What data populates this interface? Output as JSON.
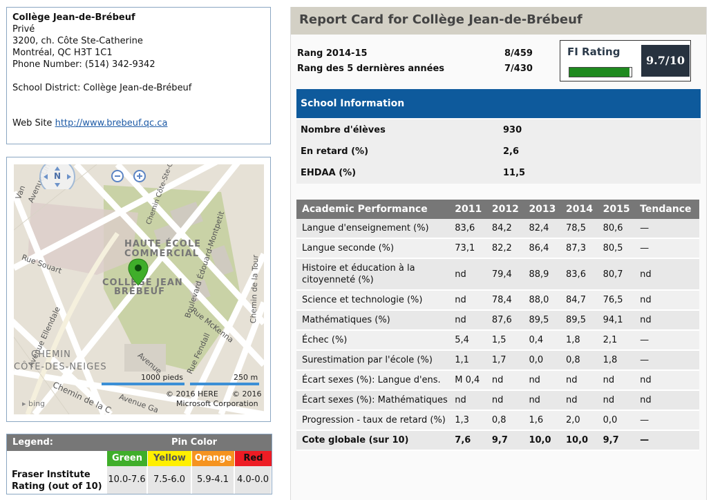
{
  "school": {
    "name": "Collège Jean-de-Brébeuf",
    "type": "Privé",
    "address1": "3200, ch. Côte Ste-Catherine",
    "address2": "Montréal, QC H3T 1C1",
    "phone": "Phone Number: (514) 342-9342",
    "district": "School District: Collège Jean-de-Brébeuf",
    "website_label": "Web Site",
    "website_url": "http://www.brebeuf.qc.ca"
  },
  "map": {
    "compass": "N",
    "labels": {
      "avenue_lint": "Avenue Lint",
      "chemin_cote": "Chemin Côte-Ste-Catherine",
      "rue_souart": "Rue Souart",
      "haute_ecole": "HAUTE ÉCOLE",
      "commercial": "COMMERCIAL",
      "college1": "COLLÈGE JEAN",
      "college2": "BRÉBEUF",
      "avenue_ellendale": "Avenue Ellendale",
      "boulevard": "Boulevard Édouard-Montpetit",
      "rue_mckenna": "Rue McKenna",
      "rue_fendall": "Rue Fendall",
      "chemin_tour": "Chemin de la Tour",
      "chemin_neiges1": "CHEMIN",
      "chemin_neiges2": "CÔTE-DES-NEIGES",
      "chemin_de_la": "Chemin de la C",
      "avenue_gatineau": "Avenue Ga",
      "avenue": "Avenue",
      "van": "Van"
    },
    "scale_ft": "1000 pieds",
    "scale_m": "250 m",
    "copyright1": "© 2016 HERE",
    "copyright2": "© 2016",
    "copyright3": "Microsoft Corporation",
    "bing": "bing"
  },
  "legend": {
    "title": "Legend:",
    "pin_color": "Pin Color",
    "colors": [
      {
        "label": "Green",
        "bg": "#3fae2a",
        "fg": "#ffffff"
      },
      {
        "label": "Yellow",
        "bg": "#ffef00",
        "fg": "#555555"
      },
      {
        "label": "Orange",
        "bg": "#f5931f",
        "fg": "#ffffff"
      },
      {
        "label": "Red",
        "bg": "#ed1c24",
        "fg": "#111111"
      }
    ],
    "rating_label1": "Fraser Institute",
    "rating_label2": "Rating (out of 10)",
    "ranges": [
      "10.0-7.6",
      "7.5-6.0",
      "5.9-4.1",
      "4.0-0.0"
    ]
  },
  "report": {
    "title": "Report Card for Collège Jean-de-Brébeuf",
    "rank_label": "Rang 2014-15",
    "rank_value": "8/459",
    "rank5_label": "Rang des 5 dernières années",
    "rank5_value": "7/430",
    "fi_label": "FI Rating",
    "fi_value": "9.7/10",
    "fi_fraction": 0.97,
    "school_info_header": "School Information",
    "school_info": [
      {
        "label": "Nombre d'élèves",
        "value": "930"
      },
      {
        "label": "En retard (%)",
        "value": "2,6"
      },
      {
        "label": "EHDAA (%)",
        "value": "11,5"
      }
    ],
    "perf_headers": [
      "Academic Performance",
      "2011",
      "2012",
      "2013",
      "2014",
      "2015",
      "Tendance"
    ],
    "perf_rows": [
      {
        "label": "Langue d'enseignement (%)",
        "values": [
          "83,6",
          "84,2",
          "82,4",
          "78,5",
          "80,6",
          "—"
        ]
      },
      {
        "label": "Langue seconde (%)",
        "values": [
          "73,1",
          "82,2",
          "86,4",
          "87,3",
          "80,5",
          "—"
        ]
      },
      {
        "label": "Histoire et éducation à la citoyenneté (%)",
        "values": [
          "nd",
          "79,4",
          "88,9",
          "83,6",
          "80,7",
          "nd"
        ]
      },
      {
        "label": "Science et technologie (%)",
        "values": [
          "nd",
          "78,4",
          "88,0",
          "84,7",
          "76,5",
          "nd"
        ]
      },
      {
        "label": "Mathématiques (%)",
        "values": [
          "nd",
          "87,6",
          "89,5",
          "89,5",
          "94,1",
          "nd"
        ]
      },
      {
        "label": "Échec (%)",
        "values": [
          "5,4",
          "1,5",
          "0,4",
          "1,8",
          "2,1",
          "—"
        ]
      },
      {
        "label": "Surestimation par l'école (%)",
        "values": [
          "1,1",
          "1,7",
          "0,0",
          "0,8",
          "1,8",
          "—"
        ]
      },
      {
        "label": "Écart sexes (%): Langue d'ens.",
        "values": [
          "M 0,4",
          "nd",
          "nd",
          "nd",
          "nd",
          "nd"
        ]
      },
      {
        "label": "Écart sexes (%): Mathématiques",
        "values": [
          "nd",
          "nd",
          "nd",
          "nd",
          "nd",
          "nd"
        ]
      },
      {
        "label": "Progression - taux de retard (%)",
        "values": [
          "1,3",
          "0,8",
          "1,6",
          "2,0",
          "0,0",
          "—"
        ]
      },
      {
        "label": "Cote globale (sur 10)",
        "values": [
          "7,6",
          "9,7",
          "10,0",
          "10,0",
          "9,7",
          "—"
        ]
      }
    ]
  },
  "colors": {
    "border": "#8aa6c2",
    "school_info_header": "#0e5a9c",
    "table_header": "#777777",
    "title_bar": "#d3d0c5",
    "fi_bar": "#1f8a1f",
    "fi_value_bg": "#27323f",
    "link": "#1d5aa6"
  }
}
